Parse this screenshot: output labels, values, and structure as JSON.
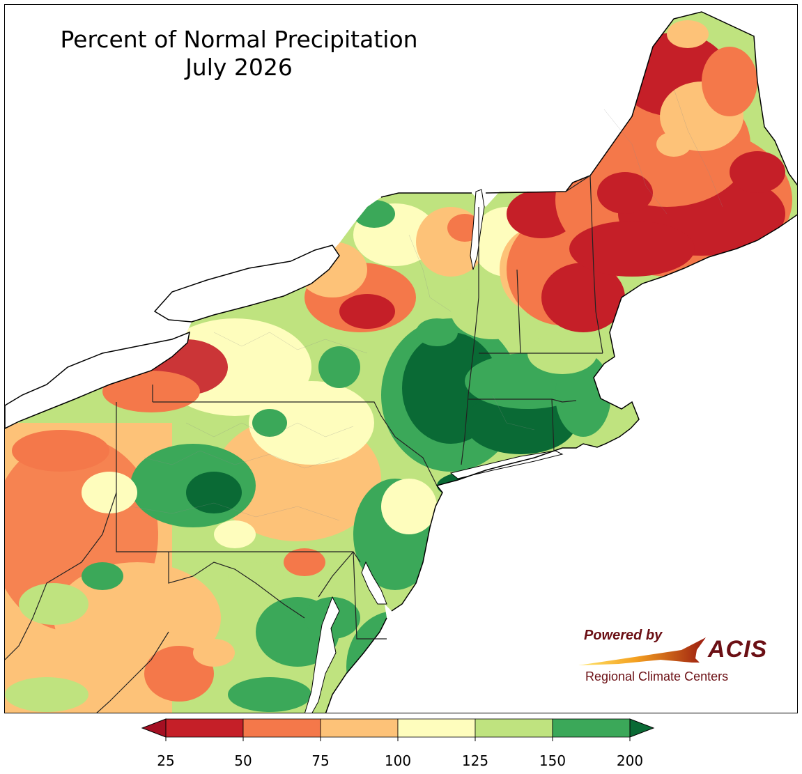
{
  "title": {
    "line1": "Percent of Normal Precipitation",
    "line2": "July 2026"
  },
  "logo": {
    "powered_by": "Powered by",
    "name": "ACIS",
    "subtitle": "Regional Climate Centers"
  },
  "legend": {
    "ticks": [
      "25",
      "50",
      "75",
      "100",
      "125",
      "150",
      "200"
    ],
    "bins": [
      {
        "from": 25,
        "to": 50,
        "color": "#c51f28"
      },
      {
        "from": 50,
        "to": 75,
        "color": "#f4784a"
      },
      {
        "from": 75,
        "to": 100,
        "color": "#fdc278"
      },
      {
        "from": 100,
        "to": 125,
        "color": "#fefdbd"
      },
      {
        "from": 125,
        "to": 150,
        "color": "#bfe37f"
      },
      {
        "from": 150,
        "to": 200,
        "color": "#3ba859"
      }
    ],
    "under_color": "#a50f22",
    "over_color": "#0a6a35"
  },
  "colors": {
    "water": "#ffffff",
    "border": "#000000",
    "county_lines": "#8a8a8a"
  }
}
